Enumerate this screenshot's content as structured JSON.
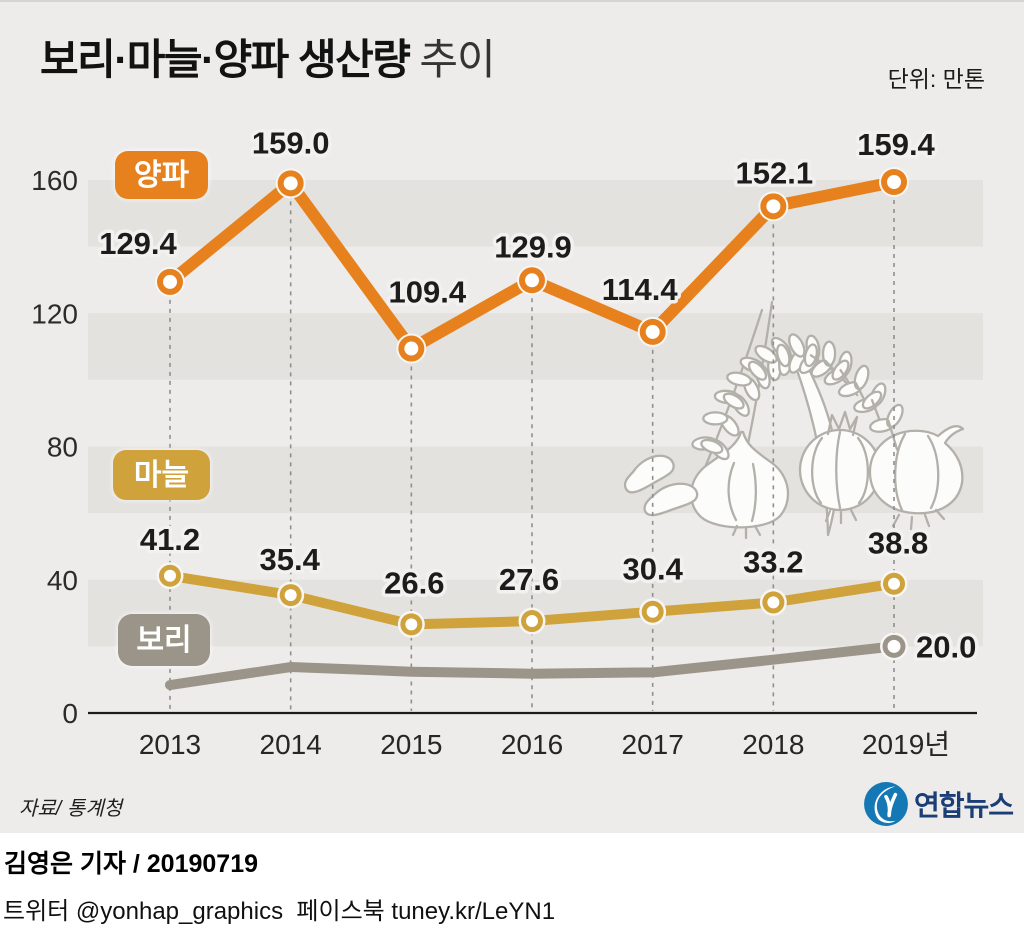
{
  "header": {
    "title_bold": "보리·마늘·양파 생산량",
    "title_light": "추이",
    "unit": "단위: 만톤"
  },
  "chart_data": {
    "type": "line",
    "title": "보리·마늘·양파 생산량 추이",
    "unit": "만톤",
    "x_tick_labels": [
      "2013",
      "2014",
      "2015",
      "2016",
      "2017",
      "2018",
      "2019년"
    ],
    "y_ticks": [
      0,
      40,
      80,
      120,
      160
    ],
    "ylim": [
      0,
      172
    ],
    "grid": "alternating horizontal bands every 20 units; dashed vertical guide at each year",
    "legend_position": "rounded chips placed on plot",
    "series": [
      {
        "name": "양파",
        "color": "#e6811d",
        "values": [
          129.4,
          159.0,
          109.4,
          129.9,
          114.4,
          152.1,
          159.4
        ],
        "labels": [
          "129.4",
          "159.0",
          "109.4",
          "129.9",
          "114.4",
          "152.1",
          "159.4"
        ]
      },
      {
        "name": "마늘",
        "color": "#cfa23c",
        "values": [
          41.2,
          35.4,
          26.6,
          27.6,
          30.4,
          33.2,
          38.8
        ],
        "labels": [
          "41.2",
          "35.4",
          "26.6",
          "27.6",
          "30.4",
          "33.2",
          "38.8"
        ]
      },
      {
        "name": "보리",
        "color": "#9b9488",
        "values": [
          8.4,
          13.8,
          12.4,
          11.8,
          12.2,
          16.0,
          20.0
        ],
        "values_note": "only the 2019 point is labeled on the graphic; earlier points read off the line",
        "labels": [
          null,
          null,
          null,
          null,
          null,
          null,
          "20.0"
        ]
      }
    ]
  },
  "footer": {
    "source": "자료/ 통계청",
    "logo_text": "연합뉴스",
    "byline": "김영은 기자 / 20190719",
    "social": "트위터 @yonhap_graphics  페이스북 tuney.kr/LeYN1"
  },
  "colors": {
    "onion": "#e6811d",
    "garlic": "#cfa23c",
    "barley": "#9b9488",
    "band": "#e4e2df",
    "panel_bg": "#eeecea",
    "axis": "#1b1b1b",
    "dash": "#8f8f8f",
    "label": "#1c1c1c",
    "logo_blue": "#1478b5",
    "logo_navy": "#1c3e77"
  }
}
